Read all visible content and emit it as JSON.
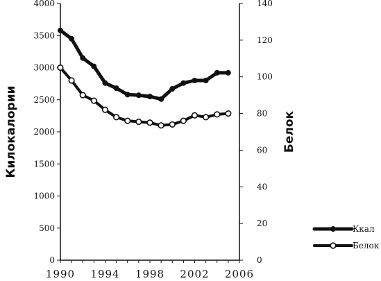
{
  "chart_data": {
    "type": "line",
    "xlabel": "",
    "ylabel_left": "Килокалории",
    "ylabel_right": "Белок",
    "xlim": [
      1990,
      2006
    ],
    "x_ticks": [
      "1990",
      "1994",
      "1998",
      "2002",
      "2006"
    ],
    "ylim_left": [
      0,
      4000
    ],
    "yticks_left": [
      "0",
      "500",
      "1000",
      "1500",
      "2000",
      "2500",
      "3000",
      "3500",
      "4000"
    ],
    "ylim_right": [
      0,
      140
    ],
    "yticks_right": [
      "0",
      "20",
      "40",
      "60",
      "80",
      "100",
      "120",
      "140"
    ],
    "grid": false,
    "legend_position": "bottom-right",
    "x": [
      1990,
      1991,
      1992,
      1993,
      1994,
      1995,
      1996,
      1997,
      1998,
      1999,
      2000,
      2001,
      2002,
      2003,
      2004,
      2005
    ],
    "series": [
      {
        "name": "Ккал",
        "axis": "left",
        "marker": "filled",
        "color": "#111111",
        "values": [
          3580,
          3450,
          3150,
          3020,
          2760,
          2680,
          2580,
          2570,
          2550,
          2510,
          2670,
          2760,
          2800,
          2800,
          2920,
          2920
        ]
      },
      {
        "name": "Белок",
        "axis": "right",
        "marker": "open",
        "color": "#111111",
        "values": [
          105,
          98,
          90,
          87,
          82,
          78,
          76,
          75.5,
          75,
          73.5,
          74,
          76,
          79,
          78,
          79.5,
          80
        ]
      }
    ]
  }
}
